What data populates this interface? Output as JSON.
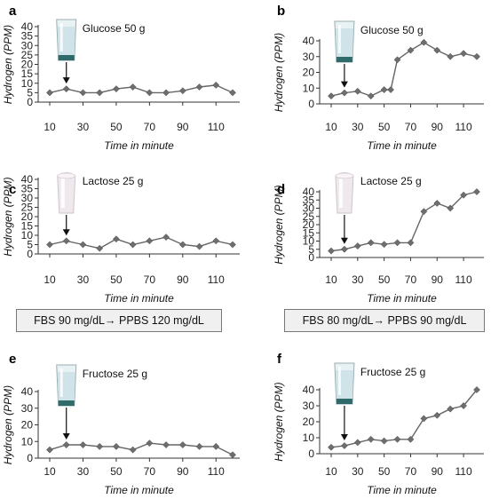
{
  "chart_data": [
    {
      "panel": "a",
      "type": "line",
      "annotation": "Glucose 50 g",
      "icon": "water-glass-icon",
      "ylabel": "Hydrogen (PPM)",
      "xlabel": "Time in minute",
      "ylim": [
        0,
        40
      ],
      "yticks": [
        0,
        5,
        10,
        15,
        20,
        25,
        30,
        35,
        40
      ],
      "xlim": [
        10,
        120
      ],
      "xticks": [
        10,
        30,
        50,
        70,
        90,
        110
      ],
      "arrow_at_x": 20,
      "series": [
        {
          "x": [
            10,
            20,
            30,
            40,
            50,
            60,
            70,
            80,
            90,
            100,
            110,
            120
          ],
          "y": [
            5,
            7,
            5,
            5,
            7,
            8,
            5,
            5,
            6,
            8,
            9,
            5
          ]
        }
      ]
    },
    {
      "panel": "b",
      "type": "line",
      "annotation": "Glucose 50 g",
      "icon": "water-glass-icon",
      "ylabel": "Hydrogen (PPM)",
      "xlabel": "Time in minute",
      "ylim": [
        0,
        40
      ],
      "yticks": [
        0,
        10,
        20,
        30,
        40
      ],
      "xlim": [
        10,
        120
      ],
      "xticks": [
        10,
        30,
        50,
        70,
        90,
        110
      ],
      "arrow_at_x": 20,
      "series": [
        {
          "x": [
            10,
            20,
            30,
            40,
            50,
            55,
            60,
            70,
            80,
            90,
            100,
            110,
            120
          ],
          "y": [
            5,
            7,
            8,
            5,
            9,
            9,
            28,
            34,
            39,
            34,
            30,
            32,
            30
          ]
        }
      ]
    },
    {
      "panel": "c",
      "type": "line",
      "annotation": "Lactose 25 g",
      "icon": "milk-glass-icon",
      "ylabel": "Hydrogen (PPM)",
      "xlabel": "Time in minute",
      "ylim": [
        0,
        40
      ],
      "yticks": [
        0,
        5,
        10,
        15,
        20,
        25,
        30,
        35,
        40
      ],
      "xlim": [
        10,
        120
      ],
      "xticks": [
        10,
        30,
        50,
        70,
        90,
        110
      ],
      "arrow_at_x": 20,
      "series": [
        {
          "x": [
            10,
            20,
            30,
            40,
            50,
            60,
            70,
            80,
            90,
            100,
            110,
            120
          ],
          "y": [
            5,
            7,
            5,
            3,
            8,
            5,
            7,
            9,
            5,
            4,
            7,
            5
          ]
        }
      ]
    },
    {
      "panel": "d",
      "type": "line",
      "annotation": "Lactose 25 g",
      "icon": "milk-glass-icon",
      "ylabel": "Hydrogen (PPM)",
      "xlabel": "Time in minute",
      "ylim": [
        0,
        40
      ],
      "yticks": [
        0,
        5,
        10,
        15,
        20,
        25,
        30,
        35,
        40
      ],
      "xlim": [
        10,
        120
      ],
      "xticks": [
        10,
        30,
        50,
        70,
        90,
        110
      ],
      "arrow_at_x": 20,
      "series": [
        {
          "x": [
            10,
            20,
            30,
            40,
            50,
            60,
            70,
            80,
            90,
            100,
            110,
            120
          ],
          "y": [
            4,
            5,
            7,
            9,
            8,
            9,
            9,
            28,
            33,
            30,
            38,
            40
          ]
        }
      ]
    },
    {
      "panel": "e",
      "type": "line",
      "annotation": "Fructose 25 g",
      "icon": "water-glass-icon",
      "ylabel": "Hydrogen (PPM)",
      "xlabel": "Time in minute",
      "ylim": [
        0,
        40
      ],
      "yticks": [
        0,
        10,
        20,
        30,
        40
      ],
      "xlim": [
        10,
        120
      ],
      "xticks": [
        10,
        30,
        50,
        70,
        90,
        110
      ],
      "arrow_at_x": 20,
      "series": [
        {
          "x": [
            10,
            20,
            30,
            40,
            50,
            60,
            70,
            80,
            90,
            100,
            110,
            120
          ],
          "y": [
            5,
            8,
            8,
            7,
            7,
            5,
            9,
            8,
            8,
            7,
            7,
            2
          ]
        }
      ]
    },
    {
      "panel": "f",
      "type": "line",
      "annotation": "Fructose 25 g",
      "icon": "water-glass-icon",
      "ylabel": "Hydrogen (PPM)",
      "xlabel": "Time in minute",
      "ylim": [
        0,
        40
      ],
      "yticks": [
        0,
        10,
        20,
        30,
        40
      ],
      "xlim": [
        10,
        120
      ],
      "xticks": [
        10,
        30,
        50,
        70,
        90,
        110
      ],
      "arrow_at_x": 20,
      "series": [
        {
          "x": [
            10,
            20,
            30,
            40,
            50,
            60,
            70,
            80,
            90,
            100,
            110,
            120
          ],
          "y": [
            4,
            5,
            7,
            9,
            8,
            9,
            9,
            22,
            24,
            28,
            30,
            40
          ]
        }
      ]
    }
  ],
  "info_boxes": [
    {
      "text": "FBS 90 mg/dL→ PPBS 120 mg/dL"
    },
    {
      "text": "FBS 80 mg/dL→ PPBS 90 mg/dL"
    }
  ],
  "colors": {
    "line": "#666666",
    "marker": "#6e6e6e",
    "axis": "#333333",
    "glass_water": "#2f6b6b"
  }
}
